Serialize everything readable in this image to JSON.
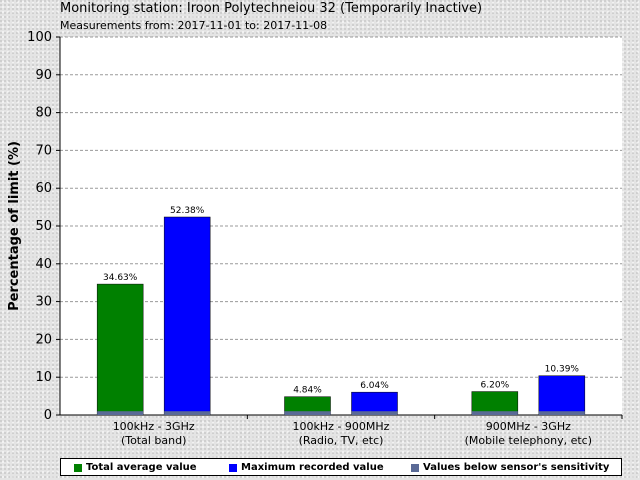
{
  "title": "Monitoring station: Iroon Polytechneiou 32 (Temporarily Inactive)",
  "subtitle": "Measurements from: 2017-11-01 to: 2017-11-08",
  "colors": {
    "total_average": "#008000",
    "maximum_recorded": "#0000ff",
    "below_sensitivity": "#5a6a96"
  },
  "chart_data": {
    "type": "bar",
    "ylabel": "Percentage of limit (%)",
    "ylim": [
      0,
      100
    ],
    "yticks": [
      0,
      10,
      20,
      30,
      40,
      50,
      60,
      70,
      80,
      90,
      100
    ],
    "grid": true,
    "legend_position": "bottom",
    "categories": [
      [
        "100kHz - 3GHz",
        "(Total band)"
      ],
      [
        "100kHz - 900MHz",
        "(Radio, TV, etc)"
      ],
      [
        "900MHz - 3GHz",
        "(Mobile telephony, etc)"
      ]
    ],
    "series": [
      {
        "name": "Total average value",
        "values": [
          34.63,
          4.84,
          6.2
        ],
        "labels": [
          "34.63%",
          "4.84%",
          "6.20%"
        ]
      },
      {
        "name": "Maximum recorded value",
        "values": [
          52.38,
          6.04,
          10.39
        ],
        "labels": [
          "52.38%",
          "6.04%",
          "10.39%"
        ]
      },
      {
        "name": "Values below sensor's sensitivity",
        "values": [
          1,
          1,
          1
        ]
      }
    ]
  }
}
